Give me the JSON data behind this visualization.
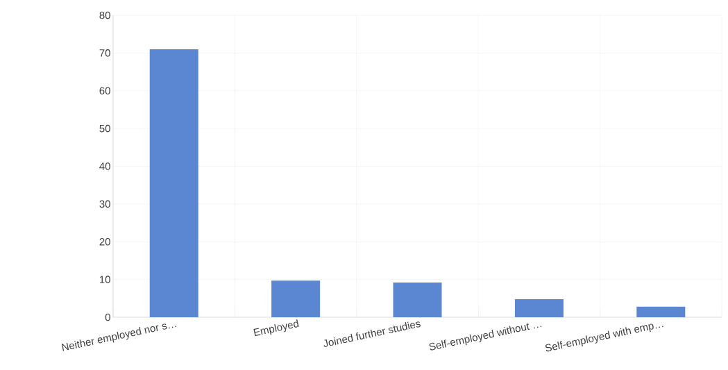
{
  "chart_data": {
    "type": "bar",
    "categories": [
      "Neither employed nor s…",
      "Employed",
      "Joined further studies",
      "Self-employed without …",
      "Self-employed with emp…"
    ],
    "values": [
      71,
      9.7,
      9.2,
      4.8,
      2.8
    ],
    "color": "#5b86d1",
    "ylim": [
      0,
      80
    ],
    "yticks": [
      0,
      10,
      20,
      30,
      40,
      50,
      60,
      70,
      80
    ],
    "grid": true
  }
}
